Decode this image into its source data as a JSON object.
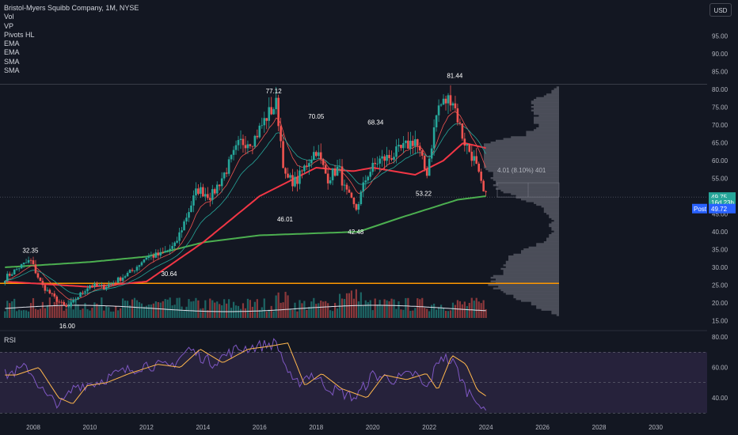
{
  "legend": {
    "title": "Bristol-Myers Squibb Company, 1M, NYSE",
    "indicators": [
      "Vol",
      "VP",
      "Pivots HL",
      "EMA",
      "EMA",
      "SMA",
      "SMA"
    ]
  },
  "currency_button": "USD",
  "rsi_label": "RSI",
  "colors": {
    "background": "#131722",
    "up": "#26a69a",
    "down": "#ef5350",
    "ema_fast": "#ef5350",
    "ema_slow": "#26a69a",
    "sma_long": "#f23645",
    "sma_200": "#4caf50",
    "horizontal_line": "#ff9800",
    "rsi": "#7e57c2",
    "rsi_ma": "#ffb74d"
  },
  "chart_data": [
    {
      "type": "candlestick",
      "title": "Bristol-Myers Squibb Company, 1M, NYSE",
      "x_ticks": [
        "2008",
        "2010",
        "2012",
        "2014",
        "2016",
        "2018",
        "2020",
        "2022",
        "2024",
        "2026",
        "2028",
        "2030"
      ],
      "y_ticks": [
        "15.00",
        "20.00",
        "25.00",
        "30.00",
        "35.00",
        "40.00",
        "45.00",
        "50.00",
        "55.00",
        "60.00",
        "65.00",
        "70.00",
        "75.00",
        "80.00",
        "85.00",
        "90.00",
        "95.00"
      ],
      "ylim": [
        13,
        100
      ],
      "price_anchors": [
        {
          "t": 2007.0,
          "v": 27.0
        },
        {
          "t": 2007.5,
          "v": 30.0
        },
        {
          "t": 2007.9,
          "v": 32.0
        },
        {
          "t": 2008.3,
          "v": 25.0
        },
        {
          "t": 2008.8,
          "v": 21.0
        },
        {
          "t": 2009.2,
          "v": 18.5
        },
        {
          "t": 2009.6,
          "v": 22.0
        },
        {
          "t": 2010.0,
          "v": 25.0
        },
        {
          "t": 2010.5,
          "v": 24.5
        },
        {
          "t": 2011.0,
          "v": 26.5
        },
        {
          "t": 2011.5,
          "v": 29.0
        },
        {
          "t": 2012.0,
          "v": 33.0
        },
        {
          "t": 2012.5,
          "v": 33.5
        },
        {
          "t": 2013.0,
          "v": 36.0
        },
        {
          "t": 2013.4,
          "v": 44.0
        },
        {
          "t": 2013.8,
          "v": 52.0
        },
        {
          "t": 2014.3,
          "v": 50.0
        },
        {
          "t": 2014.8,
          "v": 57.0
        },
        {
          "t": 2015.3,
          "v": 65.0
        },
        {
          "t": 2015.8,
          "v": 66.0
        },
        {
          "t": 2016.3,
          "v": 73.0
        },
        {
          "t": 2016.6,
          "v": 76.0
        },
        {
          "t": 2016.9,
          "v": 55.0
        },
        {
          "t": 2017.3,
          "v": 54.0
        },
        {
          "t": 2017.8,
          "v": 61.0
        },
        {
          "t": 2018.0,
          "v": 63.0
        },
        {
          "t": 2018.4,
          "v": 55.0
        },
        {
          "t": 2018.8,
          "v": 58.0
        },
        {
          "t": 2019.0,
          "v": 52.0
        },
        {
          "t": 2019.4,
          "v": 46.0
        },
        {
          "t": 2019.8,
          "v": 56.0
        },
        {
          "t": 2020.2,
          "v": 60.0
        },
        {
          "t": 2020.6,
          "v": 61.0
        },
        {
          "t": 2021.0,
          "v": 63.0
        },
        {
          "t": 2021.5,
          "v": 66.0
        },
        {
          "t": 2021.9,
          "v": 56.0
        },
        {
          "t": 2022.3,
          "v": 75.0
        },
        {
          "t": 2022.8,
          "v": 78.0
        },
        {
          "t": 2023.2,
          "v": 66.0
        },
        {
          "t": 2023.6,
          "v": 60.0
        },
        {
          "t": 2023.9,
          "v": 51.0
        },
        {
          "t": 2024.0,
          "v": 49.75
        }
      ],
      "pivots": [
        {
          "label": "32.35",
          "t": 2007.9,
          "v": 32.35,
          "pos": "above"
        },
        {
          "label": "16.00",
          "t": 2009.2,
          "v": 16.0,
          "pos": "below"
        },
        {
          "label": "30.64",
          "t": 2012.8,
          "v": 30.64,
          "pos": "below"
        },
        {
          "label": "77.12",
          "t": 2016.5,
          "v": 77.12,
          "pos": "above"
        },
        {
          "label": "46.01",
          "t": 2016.9,
          "v": 46.01,
          "pos": "below"
        },
        {
          "label": "70.05",
          "t": 2018.0,
          "v": 70.05,
          "pos": "above"
        },
        {
          "label": "42.48",
          "t": 2019.4,
          "v": 42.48,
          "pos": "below"
        },
        {
          "label": "68.34",
          "t": 2020.1,
          "v": 68.34,
          "pos": "above"
        },
        {
          "label": "53.22",
          "t": 2021.8,
          "v": 53.22,
          "pos": "below"
        },
        {
          "label": "81.44",
          "t": 2022.9,
          "v": 81.44,
          "pos": "above"
        }
      ],
      "horizontal_line": 25.5,
      "top_line": 81.44,
      "measure": {
        "label": "4.01 (8.10%) 401",
        "from": 49.75,
        "to": 53.76
      },
      "price_badges": [
        {
          "label": "49.75",
          "v": 49.75,
          "color": "#26a69a"
        },
        {
          "label": "16d 23h",
          "v": 48.2,
          "color": "#26a69a"
        },
        {
          "label": "49.72",
          "v": 46.5,
          "color": "#2962ff",
          "prefix": "Post"
        }
      ]
    },
    {
      "type": "line",
      "title": "RSI",
      "y_ticks": [
        "40.00",
        "60.00",
        "80.00"
      ],
      "ylim": [
        25,
        85
      ],
      "bands": [
        70,
        30
      ],
      "rsi_anchors": [
        {
          "t": 2007.0,
          "v": 55
        },
        {
          "t": 2007.8,
          "v": 60
        },
        {
          "t": 2008.5,
          "v": 40
        },
        {
          "t": 2009.0,
          "v": 36
        },
        {
          "t": 2009.5,
          "v": 48
        },
        {
          "t": 2010.2,
          "v": 50
        },
        {
          "t": 2011.0,
          "v": 56
        },
        {
          "t": 2012.0,
          "v": 62
        },
        {
          "t": 2012.8,
          "v": 60
        },
        {
          "t": 2013.5,
          "v": 72
        },
        {
          "t": 2014.3,
          "v": 63
        },
        {
          "t": 2015.2,
          "v": 72
        },
        {
          "t": 2016.0,
          "v": 74
        },
        {
          "t": 2016.6,
          "v": 76
        },
        {
          "t": 2017.2,
          "v": 48
        },
        {
          "t": 2017.8,
          "v": 56
        },
        {
          "t": 2018.5,
          "v": 46
        },
        {
          "t": 2019.4,
          "v": 40
        },
        {
          "t": 2020.0,
          "v": 55
        },
        {
          "t": 2020.8,
          "v": 52
        },
        {
          "t": 2021.5,
          "v": 56
        },
        {
          "t": 2021.9,
          "v": 45
        },
        {
          "t": 2022.4,
          "v": 68
        },
        {
          "t": 2022.9,
          "v": 62
        },
        {
          "t": 2023.3,
          "v": 45
        },
        {
          "t": 2023.7,
          "v": 40
        },
        {
          "t": 2023.9,
          "v": 30
        },
        {
          "t": 2024.0,
          "v": 31
        }
      ]
    }
  ]
}
